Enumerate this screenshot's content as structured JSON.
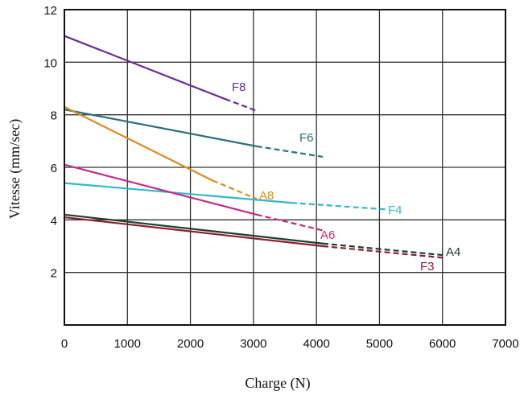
{
  "chart_data": {
    "type": "line",
    "xlabel": "Charge (N)",
    "ylabel": "Vitesse (mm/sec)",
    "xlim": [
      0,
      7000
    ],
    "ylim": [
      0,
      12
    ],
    "x_ticks": [
      "0",
      "1000",
      "2000",
      "3000",
      "4000",
      "5000",
      "6000",
      "7000"
    ],
    "y_ticks": [
      "2",
      "4",
      "6",
      "8",
      "10",
      "12"
    ],
    "grid": true,
    "series": [
      {
        "name": "F8",
        "color": "#6a2a9a",
        "solid": [
          [
            0,
            11.0
          ],
          [
            2550,
            8.6
          ]
        ],
        "dashed": [
          [
            2550,
            8.6
          ],
          [
            3050,
            8.15
          ]
        ]
      },
      {
        "name": "F6",
        "color": "#2a6f80",
        "solid": [
          [
            0,
            8.2
          ],
          [
            3050,
            6.8
          ]
        ],
        "dashed": [
          [
            3050,
            6.8
          ],
          [
            4100,
            6.4
          ]
        ]
      },
      {
        "name": "A8",
        "color": "#e08a20",
        "solid": [
          [
            0,
            8.3
          ],
          [
            2350,
            5.5
          ]
        ],
        "dashed": [
          [
            2350,
            5.5
          ],
          [
            3050,
            4.8
          ]
        ]
      },
      {
        "name": "F4",
        "color": "#30b8d0",
        "solid": [
          [
            0,
            5.4
          ],
          [
            3600,
            4.65
          ]
        ],
        "dashed": [
          [
            3600,
            4.65
          ],
          [
            5100,
            4.4
          ]
        ]
      },
      {
        "name": "A6",
        "color": "#c8288c",
        "solid": [
          [
            0,
            6.1
          ],
          [
            3050,
            4.2
          ]
        ],
        "dashed": [
          [
            3050,
            4.2
          ],
          [
            4100,
            3.6
          ]
        ]
      },
      {
        "name": "A4",
        "color": "#1f3d2a",
        "solid": [
          [
            0,
            4.2
          ],
          [
            4100,
            3.1
          ]
        ],
        "dashed": [
          [
            4100,
            3.1
          ],
          [
            6050,
            2.65
          ]
        ]
      },
      {
        "name": "F3",
        "color": "#8a1e2e",
        "solid": [
          [
            0,
            4.1
          ],
          [
            4100,
            3.0
          ]
        ],
        "dashed": [
          [
            4100,
            3.0
          ],
          [
            6050,
            2.55
          ]
        ]
      }
    ]
  }
}
